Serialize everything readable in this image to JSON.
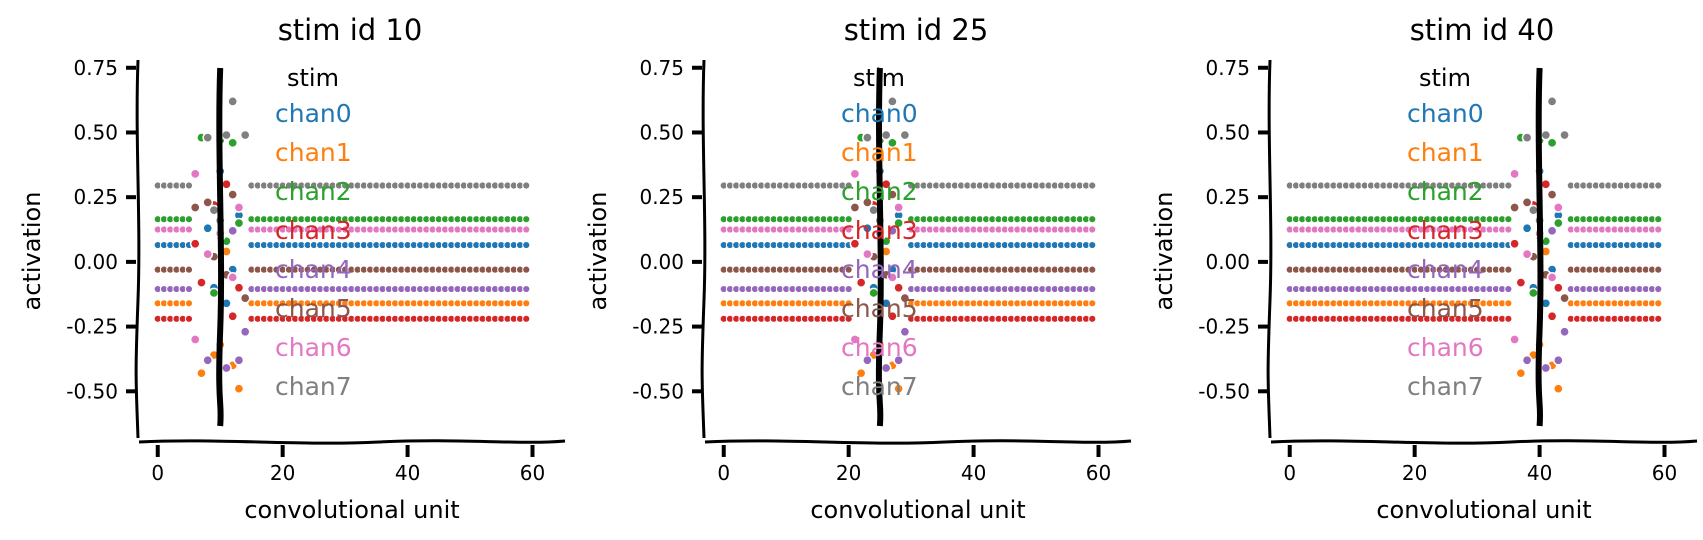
{
  "chart_data": [
    {
      "type": "scatter",
      "title": "stim id 10",
      "xlabel": "convolutional unit",
      "ylabel": "activation",
      "xlim": [
        -3,
        62
      ],
      "ylim": [
        -0.58,
        0.78
      ],
      "xticks": [
        0,
        20,
        40,
        60
      ],
      "yticks": [
        0.75,
        0.5,
        0.25,
        0.0,
        -0.25,
        -0.5
      ],
      "ytick_labels": [
        "0.75",
        "0.50",
        "0.25",
        "0.00",
        "-0.25",
        "-0.50"
      ],
      "n_units": 60,
      "stim_unit": 10,
      "stim_line": {
        "name": "stim",
        "x": 10,
        "color": "#000000"
      },
      "legend": {
        "title": "stim",
        "placement": "right",
        "entries": [
          "chan0",
          "chan1",
          "chan2",
          "chan3",
          "chan4",
          "chan5",
          "chan6",
          "chan7"
        ]
      },
      "series": [
        {
          "name": "chan0",
          "color": "#1f77b4",
          "baseline": 0.065,
          "near_stim": [
            {
              "x": 8,
              "y": 0.13
            },
            {
              "x": 9,
              "y": -0.1
            },
            {
              "x": 10,
              "y": 0.35
            },
            {
              "x": 12,
              "y": -0.03
            },
            {
              "x": 13,
              "y": 0.18
            },
            {
              "x": 11,
              "y": -0.16
            }
          ]
        },
        {
          "name": "chan1",
          "color": "#ff7f0e",
          "baseline": -0.16,
          "near_stim": [
            {
              "x": 7,
              "y": -0.43
            },
            {
              "x": 9,
              "y": -0.36
            },
            {
              "x": 10,
              "y": -0.32
            },
            {
              "x": 11,
              "y": 0.04
            },
            {
              "x": 13,
              "y": -0.49
            },
            {
              "x": 12,
              "y": -0.4
            }
          ]
        },
        {
          "name": "chan2",
          "color": "#2ca02c",
          "baseline": 0.165,
          "near_stim": [
            {
              "x": 7,
              "y": 0.48
            },
            {
              "x": 10,
              "y": 0.47
            },
            {
              "x": 11,
              "y": 0.08
            },
            {
              "x": 12,
              "y": 0.46
            },
            {
              "x": 13,
              "y": 0.15
            },
            {
              "x": 9,
              "y": -0.12
            }
          ]
        },
        {
          "name": "chan3",
          "color": "#d62728",
          "baseline": -0.22,
          "near_stim": [
            {
              "x": 6,
              "y": 0.07
            },
            {
              "x": 7,
              "y": -0.08
            },
            {
              "x": 9,
              "y": 0.22
            },
            {
              "x": 11,
              "y": 0.3
            },
            {
              "x": 12,
              "y": -0.21
            },
            {
              "x": 13,
              "y": -0.1
            }
          ]
        },
        {
          "name": "chan4",
          "color": "#9467bd",
          "baseline": -0.105,
          "near_stim": [
            {
              "x": 8,
              "y": -0.38
            },
            {
              "x": 10,
              "y": 0.1
            },
            {
              "x": 11,
              "y": -0.41
            },
            {
              "x": 12,
              "y": 0.12
            },
            {
              "x": 13,
              "y": -0.38
            },
            {
              "x": 14,
              "y": -0.27
            }
          ]
        },
        {
          "name": "chan5",
          "color": "#8c564b",
          "baseline": -0.03,
          "near_stim": [
            {
              "x": 6,
              "y": 0.21
            },
            {
              "x": 8,
              "y": 0.23
            },
            {
              "x": 9,
              "y": 0.02
            },
            {
              "x": 11,
              "y": -0.05
            },
            {
              "x": 12,
              "y": 0.26
            },
            {
              "x": 14,
              "y": -0.14
            }
          ]
        },
        {
          "name": "chan6",
          "color": "#e377c2",
          "baseline": 0.125,
          "near_stim": [
            {
              "x": 6,
              "y": 0.34
            },
            {
              "x": 6,
              "y": -0.3
            },
            {
              "x": 8,
              "y": 0.03
            },
            {
              "x": 10,
              "y": 0.11
            },
            {
              "x": 12,
              "y": -0.06
            },
            {
              "x": 13,
              "y": 0.21
            }
          ]
        },
        {
          "name": "chan7",
          "color": "#7f7f7f",
          "baseline": 0.295,
          "near_stim": [
            {
              "x": 8,
              "y": 0.48
            },
            {
              "x": 11,
              "y": 0.49
            },
            {
              "x": 12,
              "y": 0.62
            },
            {
              "x": 14,
              "y": 0.49
            },
            {
              "x": 9,
              "y": 0.2
            },
            {
              "x": 10,
              "y": 0.16
            }
          ]
        }
      ]
    },
    {
      "type": "scatter",
      "title": "stim id 25",
      "xlabel": "convolutional unit",
      "ylabel": "activation",
      "xlim": [
        -3,
        62
      ],
      "ylim": [
        -0.58,
        0.78
      ],
      "xticks": [
        0,
        20,
        40,
        60
      ],
      "yticks": [
        0.75,
        0.5,
        0.25,
        0.0,
        -0.25,
        -0.5
      ],
      "ytick_labels": [
        "0.75",
        "0.50",
        "0.25",
        "0.00",
        "-0.25",
        "-0.50"
      ],
      "n_units": 60,
      "stim_unit": 25,
      "stim_line": {
        "name": "stim",
        "x": 25,
        "color": "#000000"
      },
      "legend": {
        "title": "stim",
        "placement": "right",
        "entries": [
          "chan0",
          "chan1",
          "chan2",
          "chan3",
          "chan4",
          "chan5",
          "chan6",
          "chan7"
        ]
      },
      "series": [
        {
          "name": "chan0",
          "color": "#1f77b4",
          "baseline": 0.065,
          "near_stim": [
            {
              "x": 23,
              "y": 0.13
            },
            {
              "x": 24,
              "y": -0.1
            },
            {
              "x": 25,
              "y": 0.35
            },
            {
              "x": 27,
              "y": -0.03
            },
            {
              "x": 28,
              "y": 0.18
            },
            {
              "x": 26,
              "y": -0.16
            }
          ]
        },
        {
          "name": "chan1",
          "color": "#ff7f0e",
          "baseline": -0.16,
          "near_stim": [
            {
              "x": 22,
              "y": -0.43
            },
            {
              "x": 24,
              "y": -0.36
            },
            {
              "x": 25,
              "y": -0.32
            },
            {
              "x": 26,
              "y": 0.04
            },
            {
              "x": 28,
              "y": -0.49
            },
            {
              "x": 27,
              "y": -0.4
            }
          ]
        },
        {
          "name": "chan2",
          "color": "#2ca02c",
          "baseline": 0.165,
          "near_stim": [
            {
              "x": 22,
              "y": 0.48
            },
            {
              "x": 25,
              "y": 0.47
            },
            {
              "x": 26,
              "y": 0.08
            },
            {
              "x": 27,
              "y": 0.46
            },
            {
              "x": 28,
              "y": 0.15
            },
            {
              "x": 24,
              "y": -0.12
            }
          ]
        },
        {
          "name": "chan3",
          "color": "#d62728",
          "baseline": -0.22,
          "near_stim": [
            {
              "x": 21,
              "y": 0.07
            },
            {
              "x": 22,
              "y": -0.08
            },
            {
              "x": 24,
              "y": 0.22
            },
            {
              "x": 26,
              "y": 0.3
            },
            {
              "x": 27,
              "y": -0.21
            },
            {
              "x": 28,
              "y": -0.1
            }
          ]
        },
        {
          "name": "chan4",
          "color": "#9467bd",
          "baseline": -0.105,
          "near_stim": [
            {
              "x": 23,
              "y": -0.38
            },
            {
              "x": 25,
              "y": 0.1
            },
            {
              "x": 26,
              "y": -0.41
            },
            {
              "x": 27,
              "y": 0.12
            },
            {
              "x": 28,
              "y": -0.38
            },
            {
              "x": 29,
              "y": -0.27
            }
          ]
        },
        {
          "name": "chan5",
          "color": "#8c564b",
          "baseline": -0.03,
          "near_stim": [
            {
              "x": 21,
              "y": 0.21
            },
            {
              "x": 23,
              "y": 0.23
            },
            {
              "x": 24,
              "y": 0.02
            },
            {
              "x": 26,
              "y": -0.05
            },
            {
              "x": 27,
              "y": 0.26
            },
            {
              "x": 29,
              "y": -0.14
            }
          ]
        },
        {
          "name": "chan6",
          "color": "#e377c2",
          "baseline": 0.125,
          "near_stim": [
            {
              "x": 21,
              "y": 0.34
            },
            {
              "x": 21,
              "y": -0.3
            },
            {
              "x": 23,
              "y": 0.03
            },
            {
              "x": 25,
              "y": 0.11
            },
            {
              "x": 27,
              "y": -0.06
            },
            {
              "x": 28,
              "y": 0.21
            }
          ]
        },
        {
          "name": "chan7",
          "color": "#7f7f7f",
          "baseline": 0.295,
          "near_stim": [
            {
              "x": 23,
              "y": 0.48
            },
            {
              "x": 26,
              "y": 0.49
            },
            {
              "x": 27,
              "y": 0.62
            },
            {
              "x": 29,
              "y": 0.49
            },
            {
              "x": 24,
              "y": 0.2
            },
            {
              "x": 25,
              "y": 0.16
            }
          ]
        }
      ]
    },
    {
      "type": "scatter",
      "title": "stim id 40",
      "xlabel": "convolutional unit",
      "ylabel": "activation",
      "xlim": [
        -3,
        62
      ],
      "ylim": [
        -0.58,
        0.78
      ],
      "xticks": [
        0,
        20,
        40,
        60
      ],
      "yticks": [
        0.75,
        0.5,
        0.25,
        0.0,
        -0.25,
        -0.5
      ],
      "ytick_labels": [
        "0.75",
        "0.50",
        "0.25",
        "0.00",
        "-0.25",
        "-0.50"
      ],
      "n_units": 60,
      "stim_unit": 40,
      "stim_line": {
        "name": "stim",
        "x": 40,
        "color": "#000000"
      },
      "legend": {
        "title": "stim",
        "placement": "right",
        "entries": [
          "chan0",
          "chan1",
          "chan2",
          "chan3",
          "chan4",
          "chan5",
          "chan6",
          "chan7"
        ]
      },
      "series": [
        {
          "name": "chan0",
          "color": "#1f77b4",
          "baseline": 0.065,
          "near_stim": [
            {
              "x": 38,
              "y": 0.13
            },
            {
              "x": 39,
              "y": -0.1
            },
            {
              "x": 40,
              "y": 0.35
            },
            {
              "x": 42,
              "y": -0.03
            },
            {
              "x": 43,
              "y": 0.18
            },
            {
              "x": 41,
              "y": -0.16
            }
          ]
        },
        {
          "name": "chan1",
          "color": "#ff7f0e",
          "baseline": -0.16,
          "near_stim": [
            {
              "x": 37,
              "y": -0.43
            },
            {
              "x": 39,
              "y": -0.36
            },
            {
              "x": 40,
              "y": -0.32
            },
            {
              "x": 41,
              "y": 0.04
            },
            {
              "x": 43,
              "y": -0.49
            },
            {
              "x": 42,
              "y": -0.4
            }
          ]
        },
        {
          "name": "chan2",
          "color": "#2ca02c",
          "baseline": 0.165,
          "near_stim": [
            {
              "x": 37,
              "y": 0.48
            },
            {
              "x": 40,
              "y": 0.47
            },
            {
              "x": 41,
              "y": 0.08
            },
            {
              "x": 42,
              "y": 0.46
            },
            {
              "x": 43,
              "y": 0.15
            },
            {
              "x": 39,
              "y": -0.12
            }
          ]
        },
        {
          "name": "chan3",
          "color": "#d62728",
          "baseline": -0.22,
          "near_stim": [
            {
              "x": 36,
              "y": 0.07
            },
            {
              "x": 37,
              "y": -0.08
            },
            {
              "x": 39,
              "y": 0.22
            },
            {
              "x": 41,
              "y": 0.3
            },
            {
              "x": 42,
              "y": -0.21
            },
            {
              "x": 43,
              "y": -0.1
            }
          ]
        },
        {
          "name": "chan4",
          "color": "#9467bd",
          "baseline": -0.105,
          "near_stim": [
            {
              "x": 38,
              "y": -0.38
            },
            {
              "x": 40,
              "y": 0.1
            },
            {
              "x": 41,
              "y": -0.41
            },
            {
              "x": 42,
              "y": 0.12
            },
            {
              "x": 43,
              "y": -0.38
            },
            {
              "x": 44,
              "y": -0.27
            }
          ]
        },
        {
          "name": "chan5",
          "color": "#8c564b",
          "baseline": -0.03,
          "near_stim": [
            {
              "x": 36,
              "y": 0.21
            },
            {
              "x": 38,
              "y": 0.23
            },
            {
              "x": 39,
              "y": 0.02
            },
            {
              "x": 41,
              "y": -0.05
            },
            {
              "x": 42,
              "y": 0.26
            },
            {
              "x": 44,
              "y": -0.14
            }
          ]
        },
        {
          "name": "chan6",
          "color": "#e377c2",
          "baseline": 0.125,
          "near_stim": [
            {
              "x": 36,
              "y": 0.34
            },
            {
              "x": 36,
              "y": -0.3
            },
            {
              "x": 38,
              "y": 0.03
            },
            {
              "x": 40,
              "y": 0.11
            },
            {
              "x": 42,
              "y": -0.06
            },
            {
              "x": 43,
              "y": 0.21
            }
          ]
        },
        {
          "name": "chan7",
          "color": "#7f7f7f",
          "baseline": 0.295,
          "near_stim": [
            {
              "x": 38,
              "y": 0.48
            },
            {
              "x": 41,
              "y": 0.49
            },
            {
              "x": 42,
              "y": 0.62
            },
            {
              "x": 44,
              "y": 0.49
            },
            {
              "x": 39,
              "y": 0.2
            },
            {
              "x": 40,
              "y": 0.16
            }
          ]
        }
      ]
    }
  ]
}
